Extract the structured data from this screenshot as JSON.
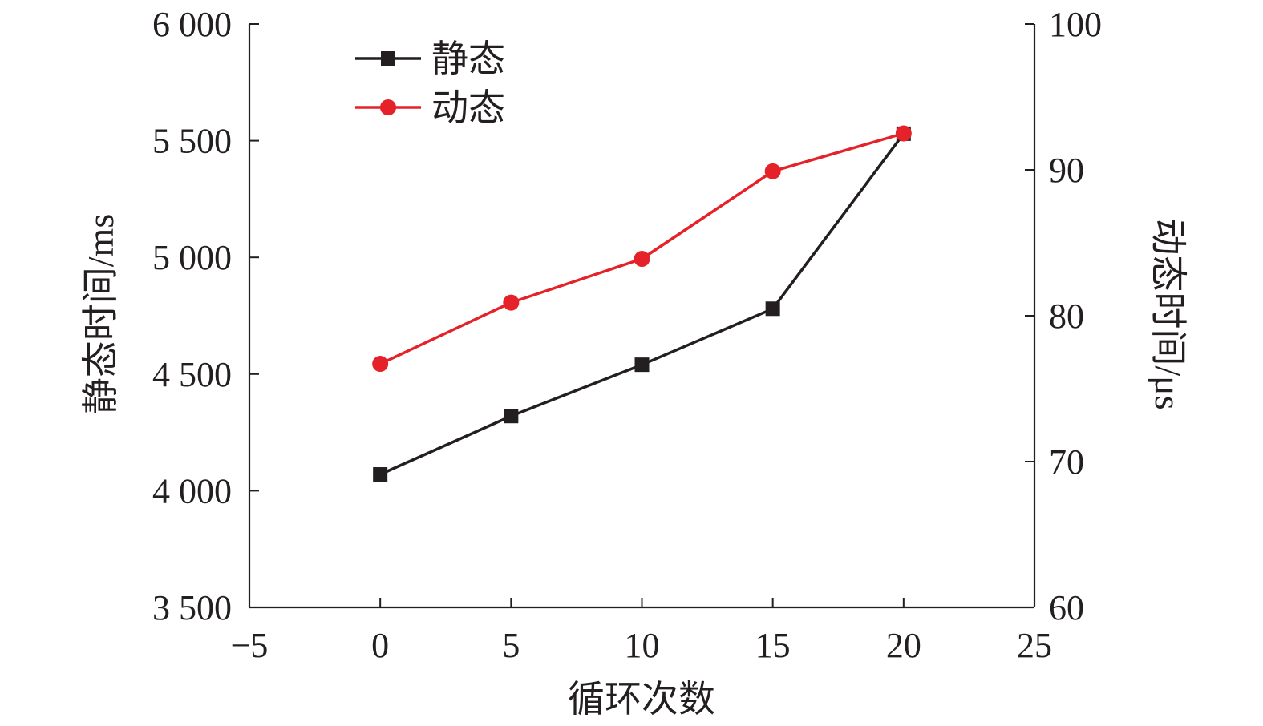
{
  "chart_data": {
    "type": "line",
    "title": "",
    "xlabel": "循环次数",
    "ylabel_left": "静态时间/ms",
    "ylabel_right": "动态时间/μs",
    "xlim": [
      -5,
      25
    ],
    "ylim_left": [
      3500,
      6000
    ],
    "ylim_right": [
      60,
      100
    ],
    "x_ticks": [
      -5,
      0,
      5,
      10,
      15,
      20,
      25
    ],
    "x_tick_labels": [
      "−5",
      "0",
      "5",
      "10",
      "15",
      "20",
      "25"
    ],
    "y_left_ticks": [
      3500,
      4000,
      4500,
      5000,
      5500,
      6000
    ],
    "y_left_tick_labels": [
      "3 500",
      "4 000",
      "4 500",
      "5 000",
      "5 500",
      "6 000"
    ],
    "y_right_ticks": [
      60,
      70,
      80,
      90,
      100
    ],
    "y_right_tick_labels": [
      "60",
      "70",
      "80",
      "90",
      "100"
    ],
    "x": [
      0,
      5,
      10,
      15,
      20
    ],
    "series": [
      {
        "name": "静态",
        "axis": "left",
        "marker": "square",
        "color": "#231f20",
        "values": [
          4070,
          4320,
          4540,
          4780,
          5530
        ]
      },
      {
        "name": "动态",
        "axis": "right",
        "marker": "circle",
        "color": "#e52129",
        "values": [
          76.7,
          80.9,
          83.9,
          89.9,
          92.5
        ]
      }
    ],
    "legend_position": "top-left",
    "grid": false
  }
}
